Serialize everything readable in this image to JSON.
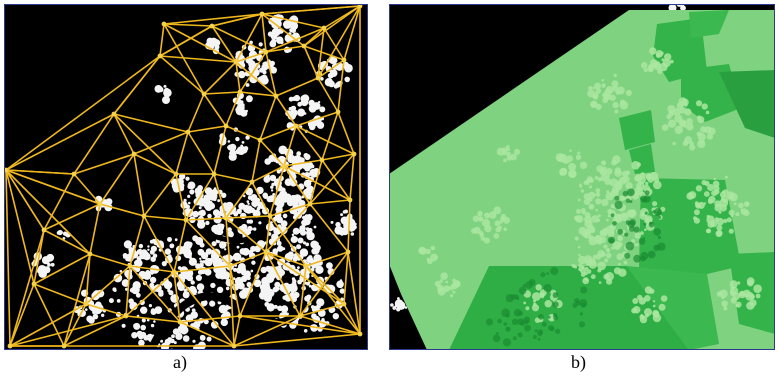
{
  "labels": {
    "a": "a)",
    "b": "b)"
  },
  "colors": {
    "background": "#000000",
    "speckle": "#f4f4f4",
    "edge": "#f0b81c",
    "node": "#f6d24a",
    "light_green": "#7fd27f",
    "dark_green": "#33b34a",
    "darker_green": "#1f9a35"
  }
}
